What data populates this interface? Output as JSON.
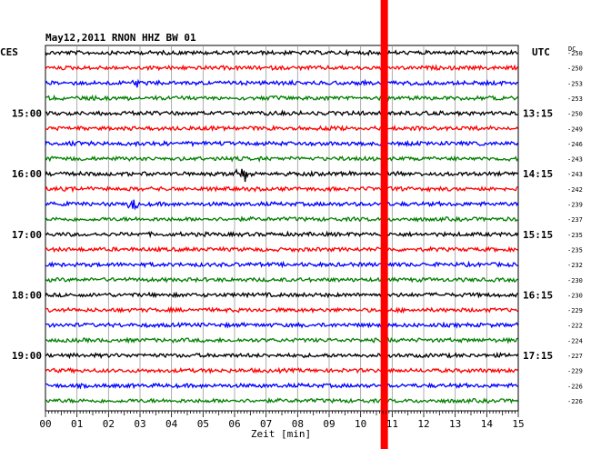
{
  "header": {
    "title": "May12,2011   RNON HHZ BW 01",
    "left_zone": "CES",
    "right_zone": "UTC",
    "dc_label": "DC"
  },
  "chart_data": {
    "type": "line",
    "title": "May12,2011   RNON HHZ BW 01",
    "xlabel": "Zeit [min]",
    "xlim": [
      0,
      15
    ],
    "x_ticks": [
      "00",
      "01",
      "02",
      "03",
      "04",
      "05",
      "06",
      "07",
      "08",
      "09",
      "10",
      "11",
      "12",
      "13",
      "14",
      "15"
    ],
    "trace_colors": [
      "#000000",
      "#ff0000",
      "#0000ff",
      "#008000"
    ],
    "trace_count": 24,
    "left_time_labels": [
      {
        "row": 4,
        "text": "15:00"
      },
      {
        "row": 8,
        "text": "16:00"
      },
      {
        "row": 12,
        "text": "17:00"
      },
      {
        "row": 16,
        "text": "18:00"
      },
      {
        "row": 20,
        "text": "19:00"
      }
    ],
    "right_time_labels": [
      {
        "row": 4,
        "text": "13:15"
      },
      {
        "row": 8,
        "text": "14:15"
      },
      {
        "row": 12,
        "text": "15:15"
      },
      {
        "row": 16,
        "text": "16:15"
      },
      {
        "row": 20,
        "text": "17:15"
      }
    ],
    "dc_offsets": [
      -250,
      -250,
      -253,
      -253,
      -250,
      -249,
      -246,
      -243,
      -243,
      -242,
      -239,
      -237,
      -235,
      -235,
      -232,
      -230,
      -230,
      -229,
      -222,
      -224,
      -227,
      -229,
      -226,
      -226
    ],
    "marker": {
      "color": "#ff0000",
      "x_minutes": 10.75
    },
    "events": [
      {
        "row": 2,
        "x_minutes": 2.9,
        "amplitude": 4
      },
      {
        "row": 8,
        "x_minutes": 6.1,
        "amplitude": 6
      },
      {
        "row": 8,
        "x_minutes": 6.3,
        "amplitude": 14
      },
      {
        "row": 10,
        "x_minutes": 2.8,
        "amplitude": 6
      }
    ]
  }
}
